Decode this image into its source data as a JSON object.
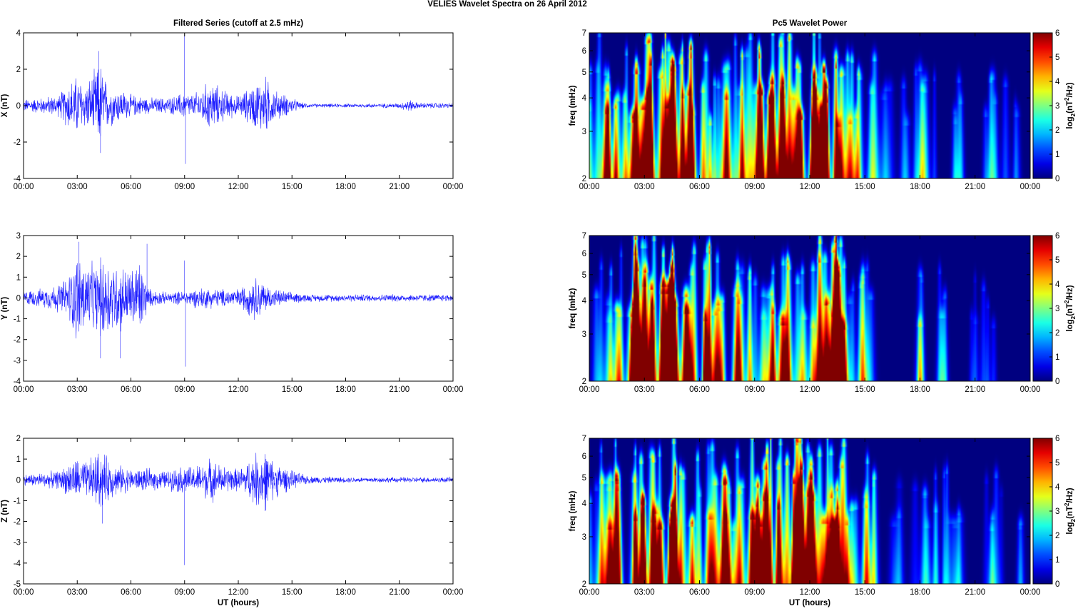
{
  "suptitle": "VELIES Wavelet Spectra on 26 April     2012",
  "colors": {
    "series_line": "#1a1aff",
    "axis": "#000000",
    "background": "#ffffff"
  },
  "x_axis": {
    "ticks": [
      "00:00",
      "03:00",
      "06:00",
      "09:00",
      "12:00",
      "15:00",
      "18:00",
      "21:00",
      "00:00"
    ],
    "tick_hours": [
      0,
      3,
      6,
      9,
      12,
      15,
      18,
      21,
      24
    ],
    "label": "UT (hours)"
  },
  "chart_data": [
    {
      "type": "line",
      "panel": "filtered-x",
      "title": "Filtered Series (cutoff at 2.5 mHz)",
      "ylabel": "X (nT)",
      "xlabel": "",
      "xlim": [
        0,
        24
      ],
      "ylim": [
        -4,
        4
      ],
      "yticks": [
        -4,
        -2,
        0,
        2,
        4
      ],
      "grid": false,
      "envelope": {
        "x": [
          0,
          1,
          2,
          2.5,
          3,
          3.5,
          4,
          4.3,
          4.6,
          5,
          5.5,
          6,
          6.5,
          7,
          8,
          8.5,
          9,
          9.5,
          10,
          10.5,
          11,
          12,
          13,
          13.5,
          14,
          15,
          15.5,
          16,
          18,
          21,
          21.5,
          22,
          24
        ],
        "y": [
          0.4,
          0.5,
          0.7,
          1.5,
          1.9,
          1.4,
          2.2,
          2.8,
          1.6,
          1.2,
          1.0,
          0.7,
          0.6,
          0.5,
          0.5,
          0.6,
          0.9,
          0.7,
          1.2,
          1.6,
          1.1,
          0.6,
          1.5,
          1.9,
          1.0,
          0.5,
          0.2,
          0.12,
          0.12,
          0.15,
          0.4,
          0.2,
          0.15
        ]
      },
      "spikes": [
        {
          "x": 9.0,
          "y": 3.9
        },
        {
          "x": 9.05,
          "y": -3.2
        },
        {
          "x": 4.3,
          "y": -2.6
        },
        {
          "x": 4.2,
          "y": 3.0
        }
      ]
    },
    {
      "type": "line",
      "panel": "filtered-y",
      "title": "",
      "ylabel": "Y (nT)",
      "xlabel": "",
      "xlim": [
        0,
        24
      ],
      "ylim": [
        -4,
        3
      ],
      "yticks": [
        -4,
        -3,
        -2,
        -1,
        0,
        1,
        2,
        3
      ],
      "grid": false,
      "envelope": {
        "x": [
          0,
          1,
          2,
          2.5,
          3,
          3.5,
          4,
          4.5,
          5,
          5.5,
          6,
          6.5,
          7,
          8,
          9,
          10,
          11,
          12,
          13,
          13.5,
          14,
          15,
          16,
          18,
          21,
          24
        ],
        "y": [
          0.4,
          0.5,
          0.8,
          1.2,
          2.5,
          2.0,
          1.8,
          2.4,
          2.0,
          1.8,
          1.6,
          2.2,
          0.5,
          0.3,
          0.4,
          0.6,
          0.5,
          0.5,
          1.2,
          0.8,
          0.5,
          0.3,
          0.2,
          0.2,
          0.2,
          0.2
        ]
      },
      "spikes": [
        {
          "x": 3.1,
          "y": 2.7
        },
        {
          "x": 6.9,
          "y": 2.6
        },
        {
          "x": 9.0,
          "y": 1.8
        },
        {
          "x": 9.05,
          "y": -3.3
        },
        {
          "x": 4.3,
          "y": -2.9
        },
        {
          "x": 5.4,
          "y": -2.9
        }
      ]
    },
    {
      "type": "line",
      "panel": "filtered-z",
      "title": "",
      "ylabel": "Z (nT)",
      "xlabel": "UT (hours)",
      "xlim": [
        0,
        24
      ],
      "ylim": [
        -5,
        2
      ],
      "yticks": [
        -5,
        -4,
        -3,
        -2,
        -1,
        0,
        1,
        2
      ],
      "grid": false,
      "envelope": {
        "x": [
          0,
          1,
          2,
          2.5,
          3,
          3.5,
          4,
          4.3,
          5,
          6,
          7,
          8,
          9,
          9.5,
          10.5,
          11,
          12,
          12.5,
          13,
          13.5,
          14,
          15,
          16,
          18,
          21,
          24
        ],
        "y": [
          0.3,
          0.4,
          0.5,
          0.9,
          1.2,
          1.0,
          1.4,
          1.7,
          0.9,
          0.6,
          0.6,
          0.5,
          0.8,
          0.7,
          1.2,
          0.8,
          0.6,
          1.0,
          1.5,
          1.7,
          1.0,
          0.5,
          0.2,
          0.15,
          0.15,
          0.15
        ]
      },
      "spikes": [
        {
          "x": 9.0,
          "y": -4.1
        },
        {
          "x": 4.4,
          "y": -2.1
        },
        {
          "x": 13.5,
          "y": -1.5
        }
      ]
    },
    {
      "type": "heatmap",
      "panel": "wavelet-x",
      "title": "Pc5 Wavelet Power",
      "ylabel": "freq (mHz)",
      "xlabel": "",
      "xlim": [
        0,
        24
      ],
      "ylim": [
        2,
        7
      ],
      "yscale": "log",
      "yticks": [
        2,
        3,
        4,
        5,
        6,
        7
      ],
      "colorbar": {
        "label_main": "log",
        "label_sub": "2",
        "label_rest": "(nT",
        "label_sup": "2",
        "label_end": "/Hz)",
        "range": [
          0,
          6
        ],
        "ticks": [
          0,
          1,
          2,
          3,
          4,
          5,
          6
        ],
        "colormap": "jet"
      },
      "activity": [
        [
          0.5,
          0.4
        ],
        [
          1.0,
          0.7
        ],
        [
          2.0,
          0.6
        ],
        [
          3.0,
          0.9
        ],
        [
          4.0,
          1.0
        ],
        [
          5.0,
          0.8
        ],
        [
          6.0,
          0.65
        ],
        [
          7.0,
          0.7
        ],
        [
          8.0,
          0.6
        ],
        [
          9.0,
          0.8
        ],
        [
          10.0,
          0.95
        ],
        [
          11.0,
          1.0
        ],
        [
          12.0,
          0.85
        ],
        [
          13.0,
          1.0
        ],
        [
          14.0,
          0.7
        ],
        [
          15.0,
          0.5
        ],
        [
          16.0,
          0.2
        ],
        [
          17.5,
          0.3
        ],
        [
          18.5,
          0.35
        ],
        [
          20.0,
          0.3
        ],
        [
          22.0,
          0.3
        ],
        [
          23.0,
          0.25
        ]
      ]
    },
    {
      "type": "heatmap",
      "panel": "wavelet-y",
      "title": "",
      "ylabel": "freq (mHz)",
      "xlabel": "",
      "xlim": [
        0,
        24
      ],
      "ylim": [
        2,
        7
      ],
      "yscale": "log",
      "yticks": [
        2,
        3,
        4,
        5,
        6,
        7
      ],
      "colorbar": {
        "label_main": "log",
        "label_sub": "2",
        "label_rest": "(nT",
        "label_sup": "2",
        "label_end": "/Hz)",
        "range": [
          0,
          6
        ],
        "ticks": [
          0,
          1,
          2,
          3,
          4,
          5,
          6
        ],
        "colormap": "jet"
      },
      "activity": [
        [
          0.5,
          0.4
        ],
        [
          1.5,
          0.5
        ],
        [
          2.5,
          0.7
        ],
        [
          3.0,
          0.95
        ],
        [
          4.0,
          1.0
        ],
        [
          5.0,
          1.0
        ],
        [
          6.0,
          0.95
        ],
        [
          7.0,
          0.6
        ],
        [
          8.0,
          0.5
        ],
        [
          9.0,
          0.5
        ],
        [
          10.0,
          0.6
        ],
        [
          11.0,
          0.6
        ],
        [
          12.0,
          0.55
        ],
        [
          13.0,
          0.9
        ],
        [
          13.5,
          0.9
        ],
        [
          14.5,
          0.4
        ],
        [
          15.0,
          0.35
        ],
        [
          18.0,
          0.3
        ],
        [
          19.0,
          0.3
        ],
        [
          21.0,
          0.25
        ],
        [
          22.0,
          0.25
        ]
      ]
    },
    {
      "type": "heatmap",
      "panel": "wavelet-z",
      "title": "",
      "ylabel": "freq (mHz)",
      "xlabel": "UT (hours)",
      "xlim": [
        0,
        24
      ],
      "ylim": [
        2,
        7
      ],
      "yscale": "log",
      "yticks": [
        2,
        3,
        4,
        5,
        6,
        7
      ],
      "colorbar": {
        "label_main": "log",
        "label_sub": "2",
        "label_rest": "(nT",
        "label_sup": "2",
        "label_end": "/Hz)",
        "range": [
          0,
          6
        ],
        "ticks": [
          0,
          1,
          2,
          3,
          4,
          5,
          6
        ],
        "colormap": "jet"
      },
      "activity": [
        [
          0.5,
          0.4
        ],
        [
          1.0,
          0.7
        ],
        [
          2.0,
          0.6
        ],
        [
          3.0,
          0.9
        ],
        [
          4.0,
          1.0
        ],
        [
          5.0,
          0.8
        ],
        [
          6.0,
          0.6
        ],
        [
          7.0,
          0.7
        ],
        [
          8.0,
          0.6
        ],
        [
          9.0,
          0.8
        ],
        [
          10.0,
          0.95
        ],
        [
          11.0,
          1.0
        ],
        [
          12.0,
          0.85
        ],
        [
          13.0,
          1.0
        ],
        [
          14.0,
          0.7
        ],
        [
          15.0,
          0.5
        ],
        [
          16.5,
          0.25
        ],
        [
          18.0,
          0.3
        ],
        [
          19.0,
          0.35
        ],
        [
          20.0,
          0.3
        ],
        [
          22.0,
          0.3
        ],
        [
          23.0,
          0.2
        ]
      ]
    }
  ]
}
